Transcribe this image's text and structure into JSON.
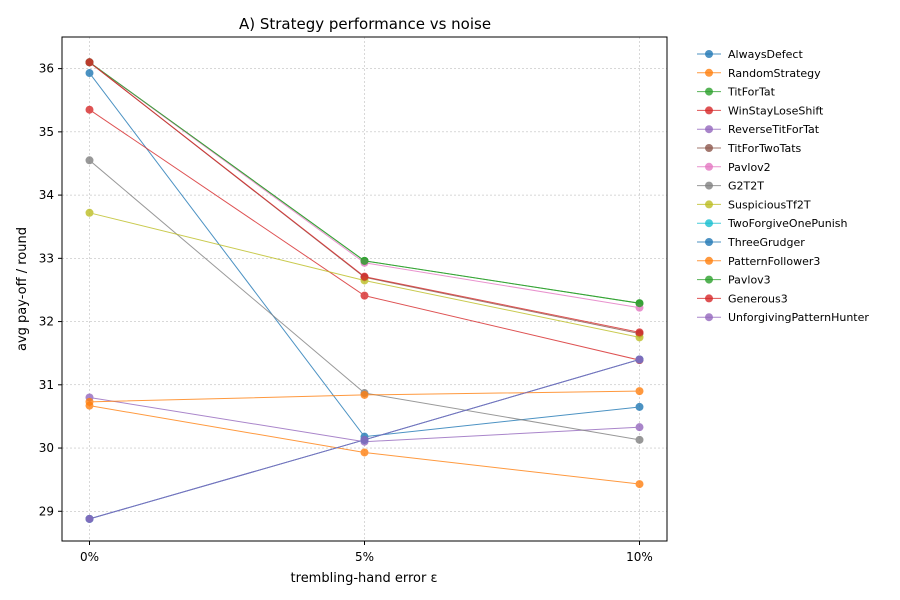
{
  "chart_data": {
    "type": "line",
    "title": "A) Strategy performance vs noise",
    "xlabel": "trembling-hand error ε",
    "ylabel": "avg pay-off / round",
    "x": [
      0,
      5,
      10
    ],
    "x_tick_labels": [
      "0%",
      "5%",
      "10%"
    ],
    "ylim": [
      28.53,
      36.5
    ],
    "y_ticks": [
      29,
      30,
      31,
      32,
      33,
      34,
      35,
      36
    ],
    "grid": true,
    "legend_position": "outside-right",
    "series": [
      {
        "name": "AlwaysDefect",
        "color": "#1f77b4",
        "values": [
          35.93,
          30.18,
          30.65
        ]
      },
      {
        "name": "RandomStrategy",
        "color": "#ff7f0e",
        "values": [
          30.67,
          29.93,
          29.43
        ]
      },
      {
        "name": "TitForTat",
        "color": "#2ca02c",
        "values": [
          36.1,
          32.96,
          32.29
        ]
      },
      {
        "name": "WinStayLoseShift",
        "color": "#d62728",
        "values": [
          35.35,
          32.41,
          31.39
        ]
      },
      {
        "name": "ReverseTitForTat",
        "color": "#9467bd",
        "values": [
          30.8,
          30.1,
          30.33
        ]
      },
      {
        "name": "TitForTwoTats",
        "color": "#8c564b",
        "values": [
          36.1,
          32.7,
          31.81
        ]
      },
      {
        "name": "Pavlov2",
        "color": "#e377c2",
        "values": [
          36.1,
          32.93,
          32.22
        ]
      },
      {
        "name": "G2T2T",
        "color": "#7f7f7f",
        "values": [
          34.55,
          30.87,
          30.13
        ]
      },
      {
        "name": "SuspiciousTf2T",
        "color": "#bcbd22",
        "values": [
          33.72,
          32.65,
          31.75
        ]
      },
      {
        "name": "TwoForgiveOnePunish",
        "color": "#17becf",
        "values": [
          28.88,
          30.13,
          31.4
        ]
      },
      {
        "name": "ThreeGrudger",
        "color": "#1f77b4",
        "values": [
          28.88,
          30.13,
          31.4
        ]
      },
      {
        "name": "PatternFollower3",
        "color": "#ff7f0e",
        "values": [
          30.73,
          30.84,
          30.9
        ]
      },
      {
        "name": "Pavlov3",
        "color": "#2ca02c",
        "values": [
          36.1,
          32.96,
          32.29
        ]
      },
      {
        "name": "Generous3",
        "color": "#d62728",
        "values": [
          36.1,
          32.71,
          31.83
        ]
      },
      {
        "name": "UnforgivingPatternHunter",
        "color": "#9467bd",
        "values": [
          28.88,
          30.13,
          31.4
        ]
      }
    ]
  }
}
